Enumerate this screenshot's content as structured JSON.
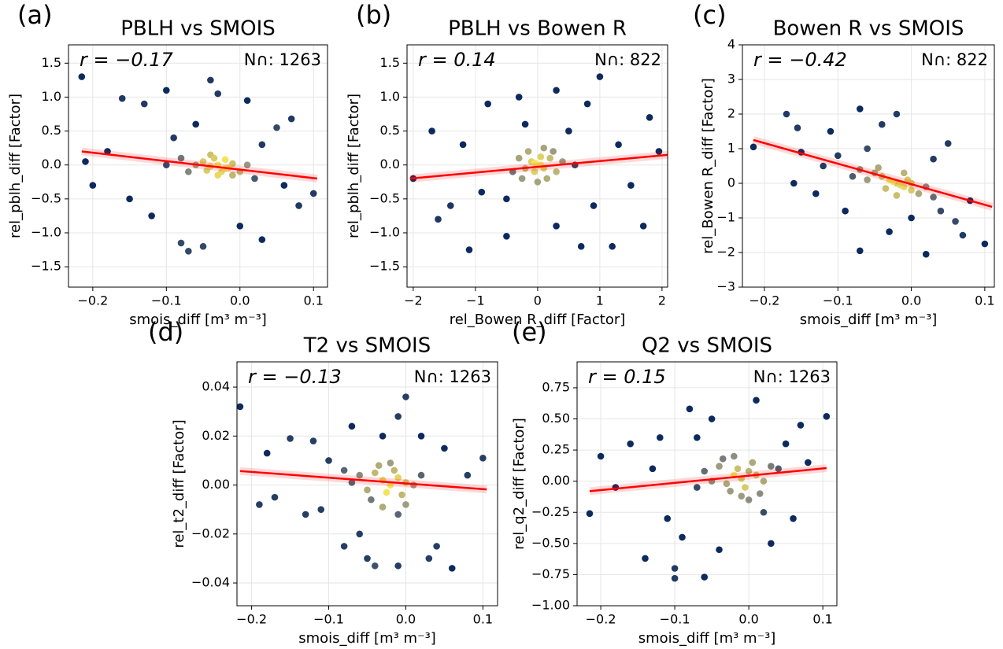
{
  "chart_data": [
    {
      "type": "scatter",
      "panel_label": "(a)",
      "title": "PBLH vs SMOIS",
      "annotation_r": "r = −0.17",
      "annotation_n": "N∩: 1263",
      "xlabel": "smois_diff [m³ m⁻³]",
      "ylabel": "rel_pblh_diff [Factor]",
      "xlim": [
        -0.233,
        0.119
      ],
      "ylim": [
        -1.8,
        1.77
      ],
      "xticks": [
        {
          "value": -0.2,
          "label": "−0.2"
        },
        {
          "value": -0.1,
          "label": "−0.1"
        },
        {
          "value": 0,
          "label": "0.0"
        },
        0.1
      ],
      "yticks": [
        {
          "value": -1.5,
          "label": "−1.5"
        },
        {
          "value": -1,
          "label": "−1.0"
        },
        {
          "value": -0.5,
          "label": "−0.5"
        },
        {
          "value": 0,
          "label": "0.0"
        },
        0.5,
        {
          "value": 1,
          "label": "1.0"
        },
        1.5
      ],
      "x": [
        -0.215,
        -0.16,
        -0.2,
        -0.21,
        -0.13,
        -0.1,
        -0.04,
        -0.03,
        0.01,
        0.07,
        0.1,
        0.08,
        0.03,
        -0.07,
        -0.05,
        -0.08,
        0.0,
        -0.12,
        -0.15,
        0.05,
        -0.18,
        0.06,
        -0.09,
        -0.06,
        0.03,
        -0.05,
        -0.04,
        -0.03,
        -0.02,
        -0.01,
        -0.035,
        -0.025,
        -0.015,
        -0.045,
        -0.02,
        0.0,
        -0.06,
        -0.03,
        -0.01,
        -0.04,
        -0.07,
        0.01,
        -0.08,
        0.02,
        -0.1
      ],
      "y": [
        1.3,
        0.98,
        -0.3,
        0.05,
        0.9,
        1.1,
        1.25,
        1.05,
        0.95,
        0.68,
        -0.42,
        -0.6,
        -1.1,
        -1.27,
        -1.2,
        -1.15,
        -0.9,
        -0.75,
        -0.5,
        0.55,
        0.2,
        -0.3,
        0.4,
        0.6,
        0.3,
        0.05,
        -0.02,
        0.0,
        -0.05,
        0.02,
        0.1,
        -0.1,
        -0.04,
        -0.08,
        0.08,
        -0.1,
        0.0,
        -0.15,
        -0.15,
        0.15,
        -0.1,
        0.0,
        0.1,
        -0.2,
        0.0
      ],
      "fit": {
        "x": [
          -0.215,
          0.105
        ],
        "y": [
          0.2,
          -0.2
        ]
      },
      "grid": true,
      "marker_color": "#0d2a5e",
      "density_color": "#f4e35a",
      "fit_color": "#ff0000",
      "annotation_color": "#ff0000"
    },
    {
      "type": "scatter",
      "panel_label": "(b)",
      "title": "PBLH vs Bowen R",
      "annotation_r": "r = 0.14",
      "annotation_n": "N∩: 822",
      "xlabel": "rel_Bowen R_diff [Factor]",
      "ylabel": "rel_pblh_diff [Factor]",
      "xlim": [
        -2.1,
        2.09
      ],
      "ylim": [
        -1.8,
        1.77
      ],
      "xticks": [
        {
          "value": -2,
          "label": "−2"
        },
        {
          "value": -1,
          "label": "−1"
        },
        0,
        1,
        2
      ],
      "yticks": [
        {
          "value": -1.5,
          "label": "−1.5"
        },
        {
          "value": -1,
          "label": "−1.0"
        },
        {
          "value": -0.5,
          "label": "−0.5"
        },
        {
          "value": 0,
          "label": "0.0"
        },
        0.5,
        {
          "value": 1,
          "label": "1.0"
        },
        1.5
      ],
      "x": [
        -2.0,
        -1.7,
        -1.1,
        -0.5,
        0.3,
        0.7,
        1.2,
        1.0,
        0.8,
        1.8,
        1.95,
        -1.2,
        -1.4,
        -0.8,
        -0.3,
        0.3,
        1.5,
        1.7,
        -0.9,
        0.5,
        -0.5,
        1.3,
        -1.6,
        0.9,
        -0.2,
        0,
        -0.1,
        0.1,
        -0.2,
        0.2,
        -0.05,
        0.05,
        -0.3,
        0.3,
        0.15,
        -0.15,
        0.0,
        0.4,
        -0.4,
        0.1,
        -0.25,
        0.05,
        -0.05,
        0.25,
        0.6
      ],
      "y": [
        -0.2,
        0.5,
        -1.25,
        -1.05,
        -0.9,
        -1.2,
        -1.2,
        1.3,
        0.9,
        0.7,
        0.2,
        0.3,
        -0.6,
        0.9,
        1.0,
        1.1,
        -0.3,
        -0.9,
        -0.4,
        0.5,
        -0.5,
        0.3,
        -0.8,
        -0.6,
        0.6,
        0,
        0.05,
        -0.05,
        -0.05,
        0.1,
        -0.1,
        0.12,
        0.1,
        -0.1,
        -0.2,
        0.2,
        -0.25,
        0.05,
        -0.1,
        0.25,
        -0.2,
        0.0,
        0.03,
        0.2,
        0.0
      ],
      "fit": {
        "x": [
          -2.05,
          2.1
        ],
        "y": [
          -0.2,
          0.15
        ]
      },
      "grid": true,
      "marker_color": "#0d2a5e",
      "density_color": "#f4e35a",
      "fit_color": "#ff0000",
      "annotation_color": "#ff0000"
    },
    {
      "type": "scatter",
      "panel_label": "(c)",
      "title": "Bowen R vs SMOIS",
      "annotation_r": "r = −0.42",
      "annotation_n": "N∩: 822",
      "xlabel": "smois_diff [m³ m⁻³]",
      "ylabel": "rel_Bowen R_diff [Factor]",
      "xlim": [
        -0.23,
        0.113
      ],
      "ylim": [
        -3,
        4
      ],
      "xticks": [
        {
          "value": -0.2,
          "label": "−0.2"
        },
        {
          "value": -0.1,
          "label": "−0.1"
        },
        {
          "value": 0,
          "label": "0.0"
        },
        0.1
      ],
      "yticks": [
        {
          "value": -3,
          "label": "−3"
        },
        {
          "value": -2,
          "label": "−2"
        },
        {
          "value": -1,
          "label": "−1"
        },
        0,
        1,
        2,
        3,
        4
      ],
      "x": [
        -0.215,
        -0.17,
        -0.155,
        -0.16,
        -0.07,
        -0.02,
        -0.11,
        -0.04,
        0.1,
        0.02,
        -0.07,
        -0.03,
        0.05,
        0.07,
        -0.13,
        0.08,
        -0.1,
        -0.06,
        0.0,
        0.04,
        -0.09,
        -0.12,
        0.03,
        -0.15,
        0.06,
        -0.03,
        -0.02,
        -0.01,
        -0.04,
        -0.025,
        -0.015,
        0.0,
        -0.05,
        -0.035,
        -0.005,
        -0.06,
        0.01,
        -0.045,
        -0.02,
        -0.07,
        0.02,
        -0.01,
        -0.08,
        0.0,
        0.03
      ],
      "y": [
        1.05,
        2.0,
        1.6,
        0.0,
        2.15,
        2.0,
        1.5,
        1.7,
        -1.75,
        -2.05,
        -1.95,
        -1.4,
        1.15,
        -1.5,
        -0.3,
        -0.5,
        0.8,
        1.0,
        -1.0,
        -0.8,
        -0.8,
        0.5,
        0.7,
        0.9,
        -1.1,
        0.1,
        0.0,
        -0.1,
        0.2,
        0.05,
        -0.05,
        -0.2,
        0.3,
        -0.15,
        0.1,
        0.1,
        -0.3,
        0.45,
        -0.35,
        0.4,
        -0.1,
        0.3,
        0.2,
        0.0,
        -0.4
      ],
      "fit": {
        "x": [
          -0.215,
          0.11
        ],
        "y": [
          1.25,
          -0.68
        ]
      },
      "grid": true,
      "marker_color": "#0d2a5e",
      "density_color": "#f4e35a",
      "fit_color": "#ff0000",
      "annotation_color": "#ff0000"
    },
    {
      "type": "scatter",
      "panel_label": "(d)",
      "title": "T2 vs SMOIS",
      "annotation_r": "r = −0.13",
      "annotation_n": "N∩: 1263",
      "xlabel": "smois_diff [m³ m⁻³]",
      "ylabel": "rel_t2_diff [Factor]",
      "xlim": [
        -0.219,
        0.119
      ],
      "ylim": [
        -0.0493,
        0.0503
      ],
      "xticks": [
        {
          "value": -0.2,
          "label": "−0.2"
        },
        {
          "value": -0.1,
          "label": "−0.1"
        },
        {
          "value": 0,
          "label": "0.0"
        },
        0.1
      ],
      "yticks": [
        {
          "value": -0.04,
          "label": "−0.04"
        },
        {
          "value": -0.02,
          "label": "−0.02"
        },
        {
          "value": 0,
          "label": "0.00"
        },
        0.02,
        0.04
      ],
      "x": [
        -0.215,
        -0.18,
        -0.15,
        -0.12,
        -0.07,
        -0.03,
        0.0,
        -0.01,
        0.1,
        0.08,
        0.06,
        0.04,
        -0.01,
        -0.04,
        -0.05,
        -0.08,
        -0.13,
        -0.17,
        -0.19,
        0.03,
        0.05,
        -0.1,
        -0.06,
        0.02,
        -0.11,
        -0.03,
        -0.02,
        -0.01,
        -0.04,
        -0.025,
        -0.015,
        0.0,
        -0.05,
        -0.035,
        -0.005,
        -0.06,
        0.01,
        -0.045,
        -0.02,
        -0.07,
        0.0,
        -0.03,
        -0.08,
        0.02,
        -0.01
      ],
      "y": [
        0.032,
        0.013,
        0.019,
        0.018,
        0.024,
        0.02,
        0.036,
        0.028,
        0.011,
        0.004,
        -0.034,
        -0.025,
        -0.033,
        -0.033,
        -0.03,
        -0.025,
        -0.012,
        -0.005,
        -0.008,
        -0.03,
        0.015,
        0.01,
        -0.02,
        0.02,
        -0.01,
        0.002,
        0.0,
        0.003,
        0.005,
        -0.003,
        0.006,
        0.001,
        -0.002,
        0.008,
        -0.004,
        0.004,
        0.0,
        -0.006,
        0.009,
        0.001,
        -0.008,
        -0.009,
        0.006,
        0.004,
        -0.012
      ],
      "fit": {
        "x": [
          -0.215,
          0.105
        ],
        "y": [
          0.0057,
          -0.0018
        ]
      },
      "grid": true,
      "marker_color": "#0d2a5e",
      "density_color": "#f4e35a",
      "fit_color": "#ff0000",
      "annotation_color": "#ff0000"
    },
    {
      "type": "scatter",
      "panel_label": "(e)",
      "title": "Q2 vs SMOIS",
      "annotation_r": "r = 0.15",
      "annotation_n": "N∩: 1263",
      "xlabel": "smois_diff [m³ m⁻³]",
      "ylabel": "rel_q2_diff [Factor]",
      "xlim": [
        -0.232,
        0.119
      ],
      "ylim": [
        -1.0,
        0.958
      ],
      "xticks": [
        {
          "value": -0.2,
          "label": "−0.2"
        },
        {
          "value": -0.1,
          "label": "−0.1"
        },
        {
          "value": 0,
          "label": "0.0"
        },
        0.1
      ],
      "yticks": [
        {
          "value": -1,
          "label": "−1.00"
        },
        {
          "value": -0.75,
          "label": "−0.75"
        },
        {
          "value": -0.5,
          "label": "−0.50"
        },
        {
          "value": -0.25,
          "label": "−0.25"
        },
        {
          "value": 0,
          "label": "0.00"
        },
        0.25,
        {
          "value": 0.5,
          "label": "0.50"
        },
        0.75
      ],
      "x": [
        -0.215,
        -0.2,
        -0.16,
        -0.14,
        -0.1,
        -0.1,
        -0.06,
        -0.08,
        -0.05,
        0.01,
        0.07,
        0.105,
        0.08,
        0.06,
        0.03,
        -0.04,
        -0.12,
        -0.18,
        -0.11,
        0.05,
        -0.13,
        0.02,
        -0.07,
        0.04,
        -0.09,
        -0.02,
        -0.01,
        0.0,
        -0.03,
        -0.015,
        -0.005,
        0.01,
        -0.04,
        -0.025,
        0.005,
        -0.05,
        0.02,
        -0.035,
        -0.01,
        -0.06,
        0.015,
        -0.02,
        -0.07,
        0.03,
        0.0
      ],
      "y": [
        -0.26,
        0.2,
        0.3,
        -0.62,
        -0.78,
        -0.7,
        -0.77,
        0.58,
        0.5,
        0.65,
        0.45,
        0.52,
        0.15,
        -0.3,
        -0.5,
        -0.55,
        0.35,
        -0.05,
        -0.3,
        0.3,
        0.1,
        -0.25,
        0.35,
        0.1,
        -0.45,
        0.05,
        0.02,
        0.08,
        -0.02,
        0.1,
        -0.05,
        0.05,
        0.12,
        -0.08,
        0.15,
        0.0,
        0.0,
        0.18,
        -0.12,
        0.08,
        -0.1,
        0.2,
        -0.05,
        0.12,
        -0.15
      ],
      "fit": {
        "x": [
          -0.215,
          0.105
        ],
        "y": [
          -0.08,
          0.105
        ]
      },
      "grid": true,
      "marker_color": "#0d2a5e",
      "density_color": "#f4e35a",
      "fit_color": "#ff0000",
      "annotation_color": "#ff0000"
    }
  ]
}
